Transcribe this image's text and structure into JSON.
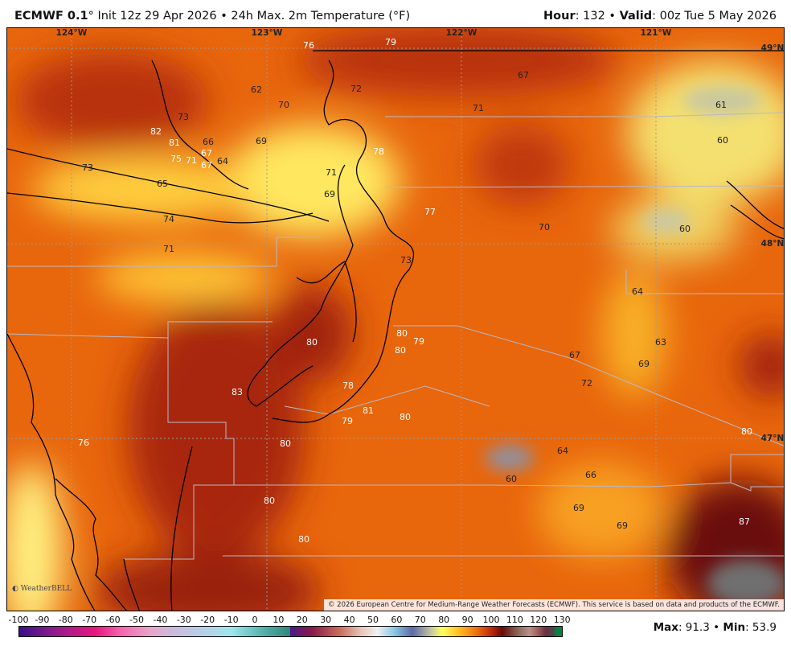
{
  "header": {
    "model": "ECMWF 0.1",
    "model_suffix": "° Init 12z 29 Apr 2026 • 24h Max. 2m Temperature (°F)",
    "hour_label": "Hour",
    "hour_value": ": 132 • ",
    "valid_label": "Valid",
    "valid_value": ": 00z Tue 5 May 2026"
  },
  "map": {
    "longitudes": [
      "124°W",
      "123°W",
      "122°W",
      "121°W"
    ],
    "latitudes": [
      "49°N",
      "48°N",
      "47°N"
    ],
    "values": [
      "76",
      "79",
      "67",
      "62",
      "72",
      "70",
      "71",
      "61",
      "73",
      "82",
      "81",
      "66",
      "69",
      "78",
      "60",
      "75",
      "71",
      "67",
      "67",
      "64",
      "73",
      "65",
      "71",
      "69",
      "77",
      "74",
      "70",
      "60",
      "71",
      "73",
      "64",
      "80",
      "79",
      "80",
      "80",
      "63",
      "67",
      "69",
      "72",
      "78",
      "83",
      "81",
      "80",
      "79",
      "80",
      "76",
      "80",
      "64",
      "60",
      "66",
      "80",
      "69",
      "69",
      "80",
      "87"
    ],
    "copyright": "© 2026 European Centre for Medium-Range Weather Forecasts (ECMWF). This service is based on data and products of the ECMWF.",
    "logo": "WeatherBELL"
  },
  "colorbar": {
    "ticks": [
      "-100",
      "-90",
      "-80",
      "-70",
      "-60",
      "-50",
      "-40",
      "-30",
      "-20",
      "-10",
      "0",
      "10",
      "20",
      "30",
      "40",
      "50",
      "60",
      "70",
      "80",
      "90",
      "100",
      "110",
      "120",
      "130"
    ]
  },
  "stats": {
    "max_label": "Max",
    "max_value": ": 91.3 • ",
    "min_label": "Min",
    "min_value": ": 53.9"
  }
}
